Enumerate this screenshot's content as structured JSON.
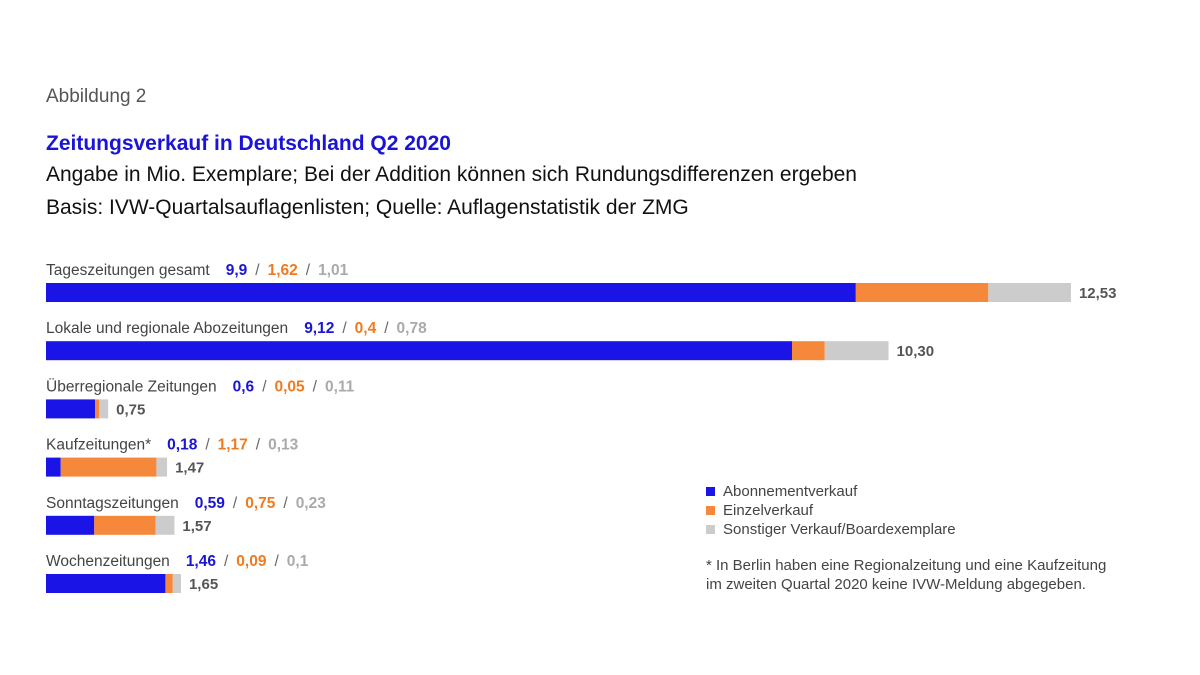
{
  "figure_label": "Abbildung 2",
  "chart_data": {
    "type": "bar",
    "orientation": "horizontal",
    "stacked": true,
    "title": "Zeitungsverkauf in Deutschland Q2 2020",
    "subtitle_lines": [
      "Angabe in Mio. Exemplare; Bei der Addition können sich Rundungsdifferenzen ergeben",
      "Basis: IVW-Quartalsauflagenlisten; Quelle: Auflagenstatistik der ZMG"
    ],
    "categories": [
      "Tageszeitungen gesamt",
      "Lokale und regionale Abozeitungen",
      "Überregionale Zeitungen",
      "Kaufzeitungen*",
      "Sonntagszeitungen",
      "Wochenzeitungen"
    ],
    "series": [
      {
        "name": "Abonnementverkauf",
        "color": "#1a14e6",
        "values": [
          9.9,
          9.12,
          0.6,
          0.18,
          0.59,
          1.46
        ],
        "labels": [
          "9,9",
          "9,12",
          "0,6",
          "0,18",
          "0,59",
          "1,46"
        ]
      },
      {
        "name": "Einzelverkauf",
        "color": "#f5883a",
        "values": [
          1.62,
          0.4,
          0.05,
          1.17,
          0.75,
          0.09
        ],
        "labels": [
          "1,62",
          "0,4",
          "0,05",
          "1,17",
          "0,75",
          "0,09"
        ]
      },
      {
        "name": "Sonstiger Verkauf/Boardexemplare",
        "color": "#cccccc",
        "values": [
          1.01,
          0.78,
          0.11,
          0.13,
          0.23,
          0.1
        ],
        "labels": [
          "1,01",
          "0,78",
          "0,11",
          "0,13",
          "0,23",
          "0,1"
        ]
      }
    ],
    "totals": [
      "12,53",
      "10,30",
      "0,75",
      "1,47",
      "1,57",
      "1,65"
    ],
    "separator": "/",
    "legend_position": "bottom-right",
    "grid": false,
    "xlabel": "",
    "ylabel": ""
  },
  "footnote": [
    "* In Berlin haben eine Regionalzeitung und eine Kaufzeitung",
    "im zweiten Quartal 2020 keine IVW-Meldung abgegeben."
  ]
}
